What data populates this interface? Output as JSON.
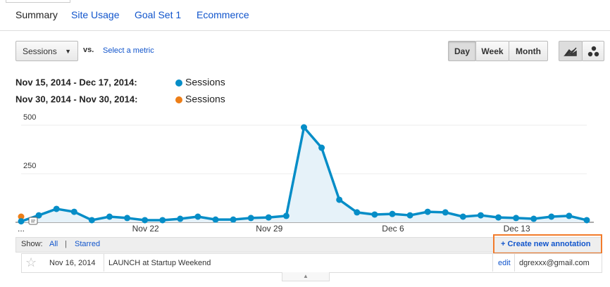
{
  "tabs": [
    "Summary",
    "Site Usage",
    "Goal Set 1",
    "Ecommerce"
  ],
  "controls": {
    "metric": "Sessions",
    "vs": "vs.",
    "compare": "Select a metric",
    "periods": [
      "Day",
      "Week",
      "Month"
    ]
  },
  "chart_data": {
    "type": "line",
    "categories": [
      "...",
      null,
      null,
      null,
      null,
      null,
      null,
      "Nov 22",
      null,
      null,
      null,
      null,
      null,
      null,
      "Nov 29",
      null,
      null,
      null,
      null,
      null,
      null,
      "Dec 6",
      null,
      null,
      null,
      null,
      null,
      null,
      "Dec 13",
      null,
      null,
      null,
      null
    ],
    "series": [
      {
        "name": "Sessions",
        "range": "Nov 15, 2014 - Dec 17, 2014:",
        "color": "#058dc7",
        "values": [
          5,
          36,
          69,
          54,
          11,
          29,
          22,
          11,
          11,
          18,
          29,
          14,
          14,
          22,
          25,
          33,
          489,
          384,
          116,
          51,
          40,
          43,
          36,
          54,
          51,
          29,
          36,
          25,
          22,
          18,
          29,
          33,
          11
        ]
      },
      {
        "name": "Sessions",
        "range": "Nov 30, 2014 - Nov 30, 2014:",
        "color": "#ed7e17",
        "values": [
          29,
          null,
          null,
          null,
          null,
          null,
          null,
          null,
          null,
          null,
          null,
          null,
          null,
          null,
          null,
          null,
          null,
          null,
          null,
          null,
          null,
          null,
          null,
          null,
          null,
          null,
          null,
          null,
          null,
          null,
          null,
          null,
          null
        ]
      }
    ],
    "ylim": [
      0,
      500
    ],
    "yticks": [
      250,
      500
    ],
    "grid": true
  },
  "annotations": {
    "show": "Show:",
    "all": "All",
    "separator": "|",
    "starred": "Starred",
    "create": "+ Create new annotation",
    "rows": [
      {
        "date": "Nov 16, 2014",
        "text": "LAUNCH at Startup Weekend",
        "edit": "edit",
        "user": "dgrexxx@gmail.com"
      }
    ]
  }
}
